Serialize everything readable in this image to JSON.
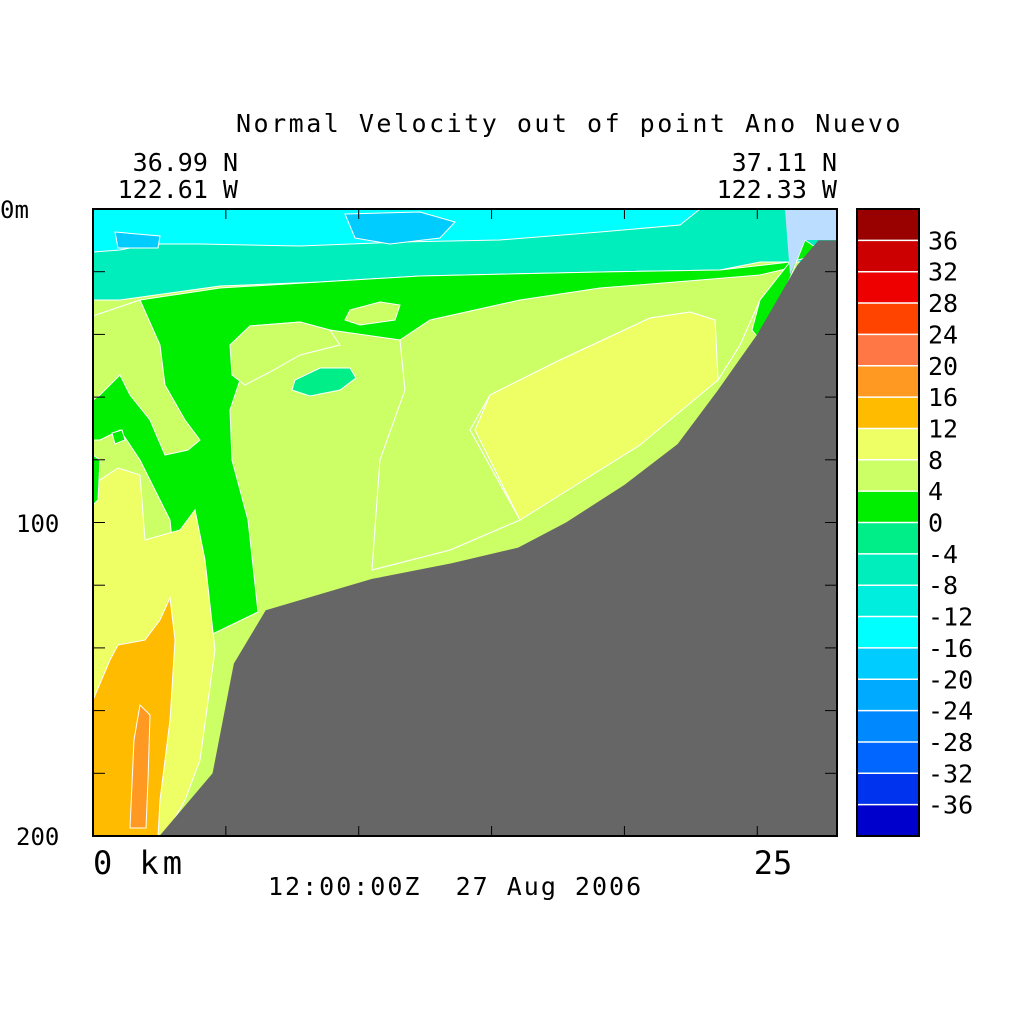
{
  "chart_data": {
    "type": "heatmap",
    "title": "Normal Velocity out of point Ano Nuevo",
    "start_coord": {
      "lat": "36.99 N",
      "lon": "122.61 W"
    },
    "end_coord": {
      "lat": "37.11 N",
      "lon": "122.33 W"
    },
    "timestamp": "12:00:00Z  27 Aug 2006",
    "x_axis": {
      "unit": "km",
      "range": [
        0,
        28
      ],
      "labeled_ticks": [
        {
          "value": 0,
          "label": "0 km"
        },
        {
          "value": 25,
          "label": "25"
        }
      ],
      "tick_values": [
        0,
        5,
        10,
        15,
        20,
        25
      ]
    },
    "y_axis": {
      "unit": "m",
      "range": [
        0,
        200
      ],
      "inverted": true,
      "labeled_ticks": [
        {
          "value": 0,
          "label": "0m"
        },
        {
          "value": 100,
          "label": "100"
        },
        {
          "value": 200,
          "label": "200"
        }
      ],
      "tick_values": [
        0,
        20,
        40,
        60,
        80,
        100,
        120,
        140,
        160,
        180,
        200
      ]
    },
    "colorbar": {
      "levels": [
        {
          "lo": 36,
          "hi": 40,
          "color": "#990000"
        },
        {
          "lo": 32,
          "hi": 36,
          "color": "#cc0000"
        },
        {
          "lo": 28,
          "hi": 32,
          "color": "#ee0000"
        },
        {
          "lo": 24,
          "hi": 28,
          "color": "#ff4400"
        },
        {
          "lo": 20,
          "hi": 24,
          "color": "#ff7744"
        },
        {
          "lo": 16,
          "hi": 20,
          "color": "#ff9922"
        },
        {
          "lo": 12,
          "hi": 16,
          "color": "#ffbb00"
        },
        {
          "lo": 8,
          "hi": 12,
          "color": "#eeff66"
        },
        {
          "lo": 4,
          "hi": 8,
          "color": "#ccff66"
        },
        {
          "lo": 0,
          "hi": 4,
          "color": "#00ee00"
        },
        {
          "lo": -4,
          "hi": 0,
          "color": "#00ee88"
        },
        {
          "lo": -8,
          "hi": -4,
          "color": "#00eebb"
        },
        {
          "lo": -12,
          "hi": -8,
          "color": "#00eedd"
        },
        {
          "lo": -16,
          "hi": -12,
          "color": "#00ffff"
        },
        {
          "lo": -20,
          "hi": -16,
          "color": "#00ccff"
        },
        {
          "lo": -24,
          "hi": -20,
          "color": "#00aaff"
        },
        {
          "lo": -28,
          "hi": -24,
          "color": "#0088ff"
        },
        {
          "lo": -32,
          "hi": -28,
          "color": "#0066ff"
        },
        {
          "lo": -36,
          "hi": -32,
          "color": "#0033ee"
        },
        {
          "lo": -40,
          "hi": -36,
          "color": "#0000cc"
        }
      ],
      "tick_labels": [
        "36",
        "32",
        "28",
        "24",
        "20",
        "16",
        "12",
        "8",
        "4",
        "0",
        "-4",
        "-8",
        "-12",
        "-16",
        "-20",
        "-24",
        "-28",
        "-32",
        "-36"
      ]
    },
    "bathymetry_color": "#666666",
    "bathymetry_depth_profile": {
      "x_km": [
        2.5,
        4.5,
        5.3,
        6.5,
        10.5,
        13.5,
        16.0,
        17.8,
        20.0,
        22.0,
        23.5,
        25.0,
        26.5,
        27.3,
        28.0
      ],
      "depth_m": [
        200,
        180,
        145,
        128,
        118,
        113,
        108,
        100,
        88,
        75,
        58,
        40,
        18,
        10,
        10
      ]
    },
    "regions": [
      {
        "velocity_bin": "-16 to -12",
        "depth_range_m": [
          0,
          15
        ],
        "x_range_km": [
          9,
          14
        ]
      },
      {
        "velocity_bin": "-12 to -8",
        "depth_range_m": [
          0,
          20
        ],
        "x_range_km": [
          0,
          24
        ]
      },
      {
        "velocity_bin": "-8 to -4",
        "depth_range_m": [
          10,
          30
        ],
        "x_range_km": [
          0,
          23
        ]
      },
      {
        "velocity_bin": "0 to 4",
        "depth_range_m": [
          20,
          130
        ],
        "x_range_km": [
          1,
          22
        ]
      },
      {
        "velocity_bin": "4 to 8",
        "depth_range_m": [
          30,
          200
        ],
        "x_range_km": [
          0,
          20
        ]
      },
      {
        "velocity_bin": "8 to 12",
        "depth_range_m": [
          35,
          200
        ],
        "x_range_km": [
          0,
          23
        ]
      },
      {
        "velocity_bin": "12 to 16",
        "depth_range_m": [
          125,
          200
        ],
        "x_range_km": [
          0,
          3
        ]
      },
      {
        "velocity_bin": "16 to 20",
        "depth_range_m": [
          160,
          197
        ],
        "x_range_km": [
          1.3,
          2
        ]
      }
    ]
  }
}
